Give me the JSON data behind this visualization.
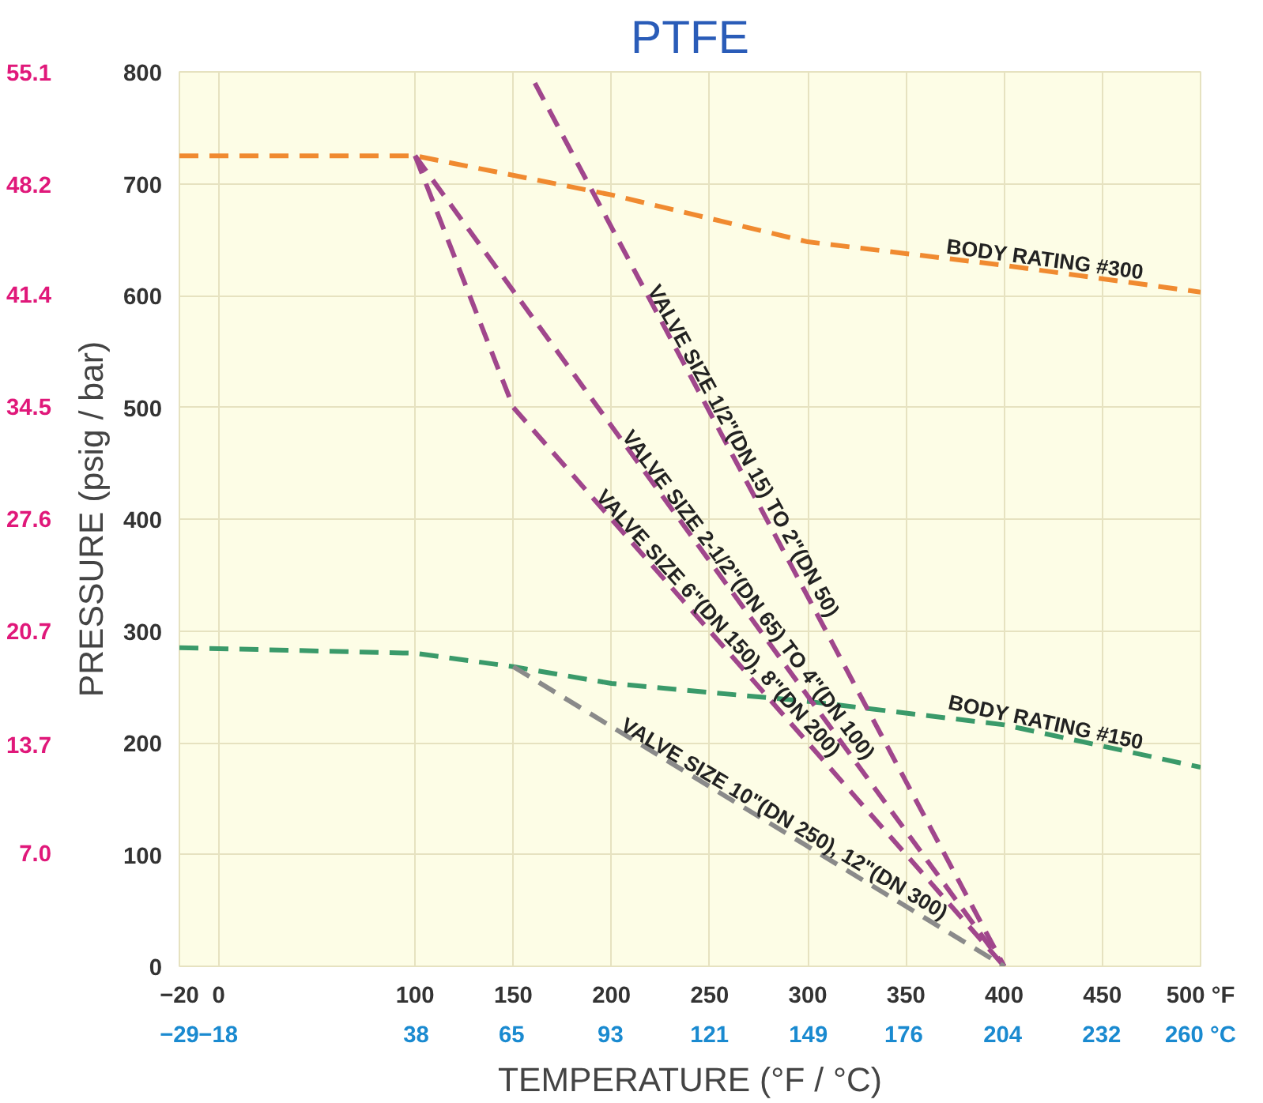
{
  "chart_data": {
    "type": "line",
    "title": "PTFE",
    "xlabel": "TEMPERATURE (°F / °C)",
    "ylabel": "PRESSURE (psig / bar)",
    "xlim": [
      -20,
      500
    ],
    "xticks": [
      -20,
      0,
      100,
      150,
      200,
      250,
      300,
      350,
      400,
      450,
      {
        "value": 500,
        "label": "500 °F"
      }
    ],
    "ylim": [
      0,
      800
    ],
    "yticks": [
      0,
      100,
      200,
      300,
      400,
      500,
      600,
      700,
      800
    ],
    "x2lim": [
      -29,
      260
    ],
    "x2ticks": [
      -29,
      -18,
      38,
      65,
      93,
      121,
      149,
      176,
      204,
      232,
      {
        "value": 260,
        "label": "260 °C"
      }
    ],
    "y2lim": [
      0,
      55.1
    ],
    "y2ticks": [
      {
        "value": 7,
        "label": "7.0"
      },
      13.7,
      20.7,
      27.6,
      34.5,
      41.4,
      48.2,
      55.1
    ],
    "grid": true,
    "line_style": "dashed",
    "marker": "none",
    "series": [
      {
        "color": "#f08a30",
        "x": [
          -20,
          100,
          200,
          300,
          400,
          500
        ],
        "values": [
          725,
          725,
          690,
          648,
          627,
          603
        ]
      },
      {
        "color": "#3a9a6a",
        "x": [
          -20,
          100,
          150,
          200,
          300,
          400,
          500
        ],
        "values": [
          285,
          280,
          268,
          253,
          237,
          216,
          178
        ]
      },
      {
        "color": "#a0468c",
        "x": [
          161,
          400
        ],
        "values": [
          790,
          0
        ]
      },
      {
        "color": "#a0468c",
        "x": [
          100,
          400
        ],
        "values": [
          725,
          0
        ]
      },
      {
        "color": "#a0468c",
        "x": [
          100,
          150,
          400
        ],
        "values": [
          725,
          500,
          0
        ]
      },
      {
        "color": "#8a8a8a",
        "x": [
          150,
          400
        ],
        "values": [
          268,
          0
        ]
      }
    ],
    "annotations": [
      {
        "text": "BODY RATING #300",
        "x": 420,
        "y": 622
      },
      {
        "text": "BODY RATING #150",
        "x": 420,
        "y": 208
      },
      {
        "text": "VALVE SIZE 1/2\"(DN 15) TO 2\"(DN 50)",
        "x": 262,
        "y": 456
      },
      {
        "text": "VALVE SIZE 2-1/2\"(DN 65) TO 4\"(DN 100)",
        "x": 265,
        "y": 326
      },
      {
        "text": "VALVE SIZE 6\"(DN 150), 8\"(DN 200)",
        "x": 250,
        "y": 300
      },
      {
        "text": "VALVE SIZE 10\"(DN 250), 12\"(DN 300)",
        "x": 285,
        "y": 123
      }
    ]
  }
}
